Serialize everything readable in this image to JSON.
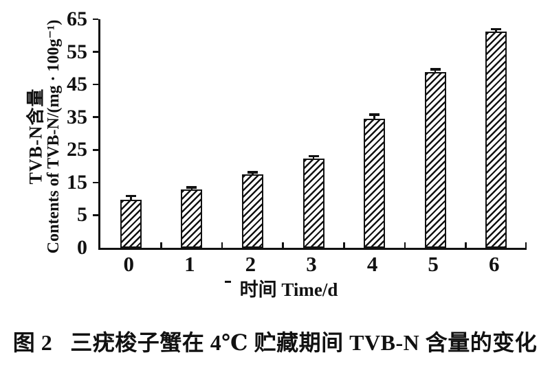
{
  "figure_caption": {
    "prefix": "图 2",
    "text": "三疣梭子蟹在 4℃ 贮藏期间 TVB-N 含量的变化"
  },
  "chart_data": {
    "type": "bar",
    "title": "",
    "categories": [
      "0",
      "1",
      "2",
      "3",
      "4",
      "5",
      "6"
    ],
    "values": [
      9.8,
      12.9,
      17.4,
      22.3,
      34.6,
      48.9,
      61.2
    ],
    "errors": [
      0.9,
      0.4,
      0.6,
      0.6,
      1.0,
      0.6,
      0.6
    ],
    "y_ticks": [
      "0",
      "5",
      "15",
      "25",
      "35",
      "45",
      "55",
      "65"
    ],
    "y_tick_values": [
      0,
      5,
      15,
      25,
      35,
      45,
      55,
      65
    ],
    "xlabel": "时间 Time/d",
    "ylabel_line1": "TVB-N含量",
    "ylabel_line2": "Contents of TVB-N/(mg · 100g⁻¹)",
    "axis_note": "y ticks equally spaced: first interval 0–5, then steps of 10 up to 65",
    "grid": false,
    "legend": "none",
    "bar_style": "white fill, black diagonal hatch (/), black border, error caps on top",
    "ink_color": "#111111",
    "background": "#ffffff"
  }
}
